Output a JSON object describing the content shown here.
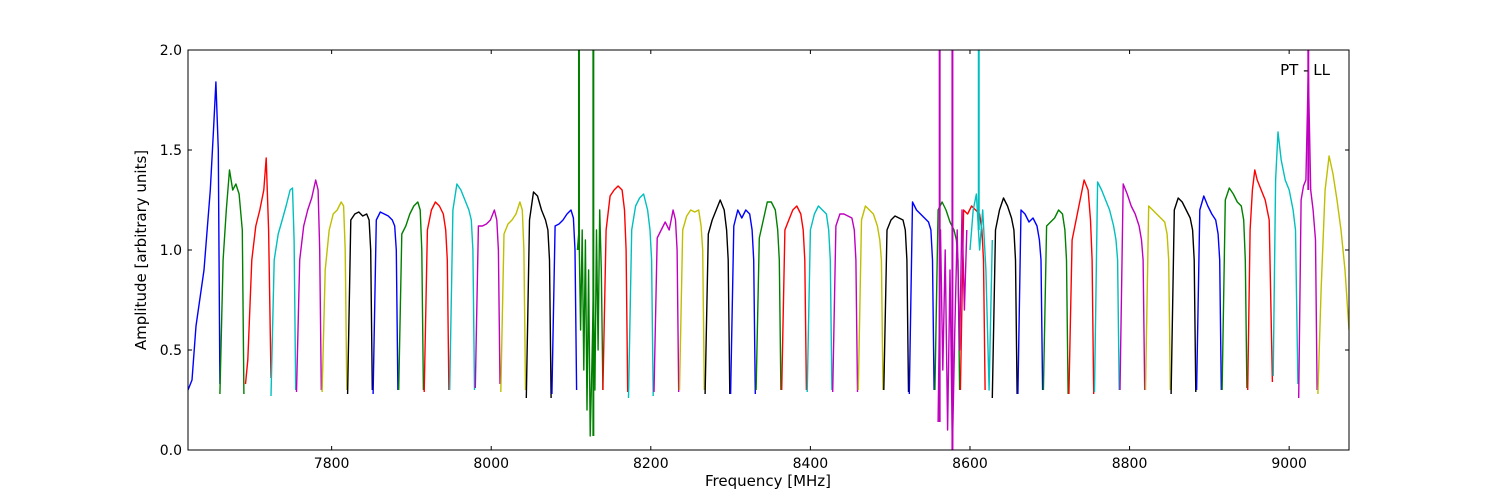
{
  "chart_data": {
    "type": "line",
    "title": "",
    "xlabel": "Frequency [MHz]",
    "ylabel": "Amplitude [arbitrary units]",
    "annotation": "PT - LL",
    "xlim": [
      7620,
      9075
    ],
    "ylim": [
      0.0,
      2.0
    ],
    "xticks": [
      7800,
      8000,
      8200,
      8400,
      8600,
      8800,
      9000
    ],
    "yticks": [
      0.0,
      0.5,
      1.0,
      1.5,
      2.0
    ],
    "xtick_labels": [
      "7800",
      "8000",
      "8200",
      "8400",
      "8600",
      "8800",
      "9000"
    ],
    "ytick_labels": [
      "0.0",
      "0.5",
      "1.0",
      "1.5",
      "2.0"
    ],
    "grid": false,
    "legend": "none",
    "color_cycle": [
      "#0000ff",
      "#008000",
      "#ff0000",
      "#00bfbf",
      "#bf00bf",
      "#bfbf00",
      "#000000"
    ],
    "series": [
      {
        "color": "#0000ff",
        "x": [
          7620,
          7625,
          7630,
          7640,
          7648,
          7652,
          7655,
          7658,
          7660
        ],
        "y": [
          0.3,
          0.35,
          0.62,
          0.9,
          1.3,
          1.6,
          1.84,
          1.5,
          0.33
        ]
      },
      {
        "color": "#008000",
        "x": [
          7660,
          7664,
          7668,
          7672,
          7676,
          7680,
          7684,
          7688,
          7690
        ],
        "y": [
          0.28,
          0.95,
          1.2,
          1.4,
          1.3,
          1.33,
          1.28,
          1.1,
          0.28
        ]
      },
      {
        "color": "#ff0000",
        "x": [
          7692,
          7695,
          7700,
          7705,
          7710,
          7715,
          7718,
          7721,
          7724
        ],
        "y": [
          0.33,
          0.45,
          0.95,
          1.12,
          1.2,
          1.3,
          1.46,
          1.1,
          0.36
        ]
      },
      {
        "color": "#00bfbf",
        "x": [
          7724,
          7728,
          7733,
          7738,
          7743,
          7748,
          7751,
          7753,
          7755
        ],
        "y": [
          0.27,
          0.95,
          1.08,
          1.15,
          1.22,
          1.3,
          1.31,
          1.05,
          0.3
        ]
      },
      {
        "color": "#bf00bf",
        "x": [
          7756,
          7760,
          7765,
          7770,
          7775,
          7780,
          7783,
          7785,
          7787
        ],
        "y": [
          0.29,
          0.95,
          1.12,
          1.2,
          1.26,
          1.35,
          1.3,
          1.0,
          0.3
        ]
      },
      {
        "color": "#bfbf00",
        "x": [
          7788,
          7792,
          7797,
          7802,
          7807,
          7812,
          7815,
          7817,
          7819
        ],
        "y": [
          0.29,
          0.9,
          1.1,
          1.18,
          1.2,
          1.24,
          1.22,
          1.0,
          0.3
        ]
      },
      {
        "color": "#000000",
        "x": [
          7820,
          7824,
          7829,
          7834,
          7839,
          7844,
          7847,
          7849,
          7851
        ],
        "y": [
          0.28,
          1.15,
          1.18,
          1.19,
          1.17,
          1.18,
          1.15,
          1.0,
          0.3
        ]
      },
      {
        "color": "#0000ff",
        "x": [
          7852,
          7856,
          7861,
          7866,
          7871,
          7876,
          7879,
          7881,
          7883
        ],
        "y": [
          0.28,
          1.15,
          1.19,
          1.18,
          1.17,
          1.15,
          1.12,
          1.0,
          0.3
        ]
      },
      {
        "color": "#008000",
        "x": [
          7884,
          7888,
          7893,
          7898,
          7903,
          7908,
          7911,
          7913,
          7915
        ],
        "y": [
          0.3,
          1.08,
          1.12,
          1.18,
          1.22,
          1.24,
          1.2,
          1.0,
          0.3
        ]
      },
      {
        "color": "#ff0000",
        "x": [
          7916,
          7920,
          7925,
          7930,
          7935,
          7940,
          7943,
          7945,
          7947
        ],
        "y": [
          0.29,
          1.1,
          1.2,
          1.24,
          1.22,
          1.18,
          1.1,
          0.95,
          0.3
        ]
      },
      {
        "color": "#00bfbf",
        "x": [
          7948,
          7952,
          7957,
          7962,
          7967,
          7972,
          7975,
          7977,
          7979
        ],
        "y": [
          0.3,
          1.2,
          1.33,
          1.3,
          1.25,
          1.2,
          1.15,
          1.0,
          0.3
        ]
      },
      {
        "color": "#bf00bf",
        "x": [
          7980,
          7984,
          7989,
          7994,
          7999,
          8004,
          8007,
          8009,
          8011
        ],
        "y": [
          0.31,
          1.12,
          1.12,
          1.13,
          1.15,
          1.2,
          1.15,
          1.0,
          0.33
        ]
      },
      {
        "color": "#bfbf00",
        "x": [
          8012,
          8016,
          8021,
          8026,
          8031,
          8036,
          8039,
          8041,
          8043
        ],
        "y": [
          0.29,
          1.08,
          1.13,
          1.15,
          1.18,
          1.24,
          1.2,
          1.0,
          0.3
        ]
      },
      {
        "color": "#000000",
        "x": [
          8044,
          8048,
          8053,
          8058,
          8063,
          8068,
          8071,
          8073,
          8075
        ],
        "y": [
          0.26,
          1.15,
          1.29,
          1.27,
          1.2,
          1.15,
          1.1,
          0.95,
          0.26
        ]
      },
      {
        "color": "#0000ff",
        "x": [
          8076,
          8080,
          8085,
          8090,
          8095,
          8100,
          8103,
          8105,
          8107
        ],
        "y": [
          0.28,
          1.12,
          1.13,
          1.15,
          1.18,
          1.2,
          1.16,
          1.0,
          0.3
        ]
      },
      {
        "color": "#008000",
        "x": [
          8108,
          8110,
          8112,
          8114,
          8116,
          8118,
          8120,
          8122,
          8124,
          8126,
          8128,
          8130,
          8132,
          8134,
          8136,
          8138,
          8140
        ],
        "y": [
          1.0,
          1.1,
          0.6,
          1.1,
          0.4,
          1.05,
          0.2,
          0.9,
          0.07,
          0.4,
          0.8,
          0.3,
          1.1,
          0.5,
          1.2,
          0.9,
          0.3
        ]
      },
      {
        "color": "#ff0000",
        "x": [
          8140,
          8144,
          8149,
          8154,
          8159,
          8164,
          8167,
          8169,
          8171
        ],
        "y": [
          0.3,
          1.1,
          1.27,
          1.3,
          1.32,
          1.3,
          1.2,
          1.0,
          0.29
        ]
      },
      {
        "color": "#00bfbf",
        "x": [
          8172,
          8176,
          8181,
          8186,
          8191,
          8196,
          8199,
          8201,
          8203
        ],
        "y": [
          0.26,
          1.1,
          1.22,
          1.26,
          1.28,
          1.2,
          1.1,
          0.95,
          0.27
        ]
      },
      {
        "color": "#bf00bf",
        "x": [
          8204,
          8208,
          8213,
          8218,
          8223,
          8228,
          8231,
          8233,
          8235
        ],
        "y": [
          0.29,
          1.06,
          1.1,
          1.14,
          1.1,
          1.2,
          1.15,
          1.0,
          0.29
        ]
      },
      {
        "color": "#bfbf00",
        "x": [
          8236,
          8240,
          8245,
          8250,
          8255,
          8260,
          8263,
          8265,
          8267
        ],
        "y": [
          0.3,
          1.1,
          1.17,
          1.2,
          1.19,
          1.2,
          1.12,
          1.0,
          0.3
        ]
      },
      {
        "color": "#000000",
        "x": [
          8268,
          8272,
          8277,
          8282,
          8287,
          8292,
          8295,
          8297,
          8299
        ],
        "y": [
          0.28,
          1.08,
          1.15,
          1.2,
          1.25,
          1.2,
          1.1,
          0.95,
          0.28
        ]
      },
      {
        "color": "#0000ff",
        "x": [
          8300,
          8304,
          8309,
          8314,
          8319,
          8324,
          8327,
          8329,
          8331
        ],
        "y": [
          0.28,
          1.12,
          1.2,
          1.16,
          1.2,
          1.18,
          1.1,
          0.95,
          0.28
        ]
      },
      {
        "color": "#008000",
        "x": [
          8332,
          8336,
          8341,
          8346,
          8351,
          8356,
          8359,
          8361,
          8363
        ],
        "y": [
          0.3,
          1.06,
          1.15,
          1.24,
          1.24,
          1.2,
          1.1,
          0.95,
          0.3
        ]
      },
      {
        "color": "#ff0000",
        "x": [
          8364,
          8368,
          8373,
          8378,
          8383,
          8388,
          8391,
          8393,
          8395
        ],
        "y": [
          0.3,
          1.1,
          1.15,
          1.2,
          1.22,
          1.18,
          1.1,
          0.95,
          0.3
        ]
      },
      {
        "color": "#00bfbf",
        "x": [
          8396,
          8400,
          8405,
          8410,
          8415,
          8420,
          8423,
          8425,
          8427
        ],
        "y": [
          0.29,
          1.1,
          1.18,
          1.22,
          1.2,
          1.18,
          1.1,
          0.95,
          0.3
        ]
      },
      {
        "color": "#bf00bf",
        "x": [
          8428,
          8432,
          8437,
          8442,
          8447,
          8452,
          8455,
          8457,
          8459
        ],
        "y": [
          0.29,
          1.12,
          1.18,
          1.18,
          1.17,
          1.16,
          1.1,
          0.95,
          0.29
        ]
      },
      {
        "color": "#bfbf00",
        "x": [
          8460,
          8464,
          8469,
          8474,
          8479,
          8484,
          8487,
          8489,
          8491
        ],
        "y": [
          0.3,
          1.15,
          1.22,
          1.2,
          1.18,
          1.12,
          1.05,
          0.95,
          0.3
        ]
      },
      {
        "color": "#000000",
        "x": [
          8492,
          8496,
          8501,
          8506,
          8511,
          8516,
          8519,
          8521,
          8523
        ],
        "y": [
          0.3,
          1.1,
          1.15,
          1.17,
          1.16,
          1.15,
          1.1,
          0.95,
          0.29
        ]
      },
      {
        "color": "#0000ff",
        "x": [
          8524,
          8528,
          8533,
          8538,
          8543,
          8548,
          8551,
          8553,
          8555
        ],
        "y": [
          0.28,
          1.24,
          1.2,
          1.18,
          1.16,
          1.14,
          1.1,
          0.95,
          0.3
        ]
      },
      {
        "color": "#008000",
        "x": [
          8556,
          8560,
          8565,
          8570,
          8575,
          8580,
          8583,
          8585,
          8587
        ],
        "y": [
          0.3,
          1.2,
          1.24,
          1.2,
          1.14,
          1.1,
          1.05,
          0.95,
          0.3
        ]
      },
      {
        "color": "#ff0000",
        "x": [
          8588,
          8592,
          8597,
          8602,
          8607,
          8612,
          8615,
          8617,
          8619
        ],
        "y": [
          0.3,
          1.2,
          1.18,
          1.22,
          1.2,
          1.18,
          1.1,
          0.95,
          0.3
        ]
      },
      {
        "color": "#bf00bf",
        "x": [
          8560,
          8563,
          8566,
          8569,
          8572,
          8575,
          8578,
          8581,
          8584,
          8587,
          8590,
          8593,
          8596
        ],
        "y": [
          0.14,
          1.1,
          0.4,
          1.0,
          0.1,
          0.9,
          0.0,
          0.6,
          1.1,
          0.5,
          1.2,
          0.7,
          1.1
        ]
      },
      {
        "color": "#00bfbf",
        "x": [
          8600,
          8604,
          8608,
          8612,
          8616,
          8620,
          8624,
          8628
        ],
        "y": [
          1.0,
          1.2,
          1.28,
          1.0,
          1.2,
          0.9,
          0.3,
          1.05
        ]
      },
      {
        "color": "#000000",
        "x": [
          8628,
          8632,
          8637,
          8642,
          8647,
          8652,
          8655,
          8657,
          8659
        ],
        "y": [
          0.26,
          1.1,
          1.2,
          1.26,
          1.22,
          1.16,
          1.1,
          0.95,
          0.28
        ]
      },
      {
        "color": "#0000ff",
        "x": [
          8660,
          8664,
          8669,
          8674,
          8679,
          8684,
          8687,
          8689,
          8691
        ],
        "y": [
          0.28,
          1.2,
          1.18,
          1.14,
          1.16,
          1.12,
          1.05,
          0.95,
          0.3
        ]
      },
      {
        "color": "#008000",
        "x": [
          8692,
          8696,
          8701,
          8706,
          8711,
          8716,
          8719,
          8721,
          8723
        ],
        "y": [
          0.3,
          1.12,
          1.14,
          1.16,
          1.2,
          1.18,
          1.1,
          0.95,
          0.28
        ]
      },
      {
        "color": "#ff0000",
        "x": [
          8724,
          8728,
          8733,
          8738,
          8743,
          8748,
          8751,
          8753,
          8755
        ],
        "y": [
          0.28,
          1.05,
          1.15,
          1.25,
          1.35,
          1.3,
          1.15,
          0.95,
          0.28
        ]
      },
      {
        "color": "#00bfbf",
        "x": [
          8756,
          8760,
          8765,
          8770,
          8775,
          8780,
          8783,
          8785,
          8787
        ],
        "y": [
          0.29,
          1.34,
          1.3,
          1.25,
          1.2,
          1.12,
          1.05,
          0.95,
          0.3
        ]
      },
      {
        "color": "#bf00bf",
        "x": [
          8788,
          8792,
          8797,
          8802,
          8807,
          8812,
          8815,
          8817,
          8819
        ],
        "y": [
          0.3,
          1.33,
          1.28,
          1.22,
          1.18,
          1.12,
          1.05,
          0.95,
          0.3
        ]
      },
      {
        "color": "#bfbf00",
        "x": [
          8820,
          8824,
          8829,
          8834,
          8839,
          8844,
          8847,
          8849,
          8851
        ],
        "y": [
          0.3,
          1.22,
          1.2,
          1.18,
          1.16,
          1.14,
          1.08,
          0.95,
          0.3
        ]
      },
      {
        "color": "#000000",
        "x": [
          8852,
          8856,
          8861,
          8866,
          8871,
          8876,
          8879,
          8881,
          8883
        ],
        "y": [
          0.28,
          1.2,
          1.26,
          1.24,
          1.2,
          1.16,
          1.1,
          0.95,
          0.29
        ]
      },
      {
        "color": "#0000ff",
        "x": [
          8884,
          8888,
          8893,
          8898,
          8903,
          8908,
          8911,
          8913,
          8915
        ],
        "y": [
          0.3,
          1.2,
          1.27,
          1.22,
          1.18,
          1.15,
          1.08,
          0.95,
          0.3
        ]
      },
      {
        "color": "#008000",
        "x": [
          8916,
          8920,
          8925,
          8930,
          8935,
          8940,
          8943,
          8945,
          8947
        ],
        "y": [
          0.3,
          1.25,
          1.31,
          1.28,
          1.24,
          1.22,
          1.15,
          0.95,
          0.31
        ]
      },
      {
        "color": "#ff0000",
        "x": [
          8948,
          8951,
          8954,
          8957,
          8960,
          8965,
          8970,
          8975,
          8979
        ],
        "y": [
          0.3,
          1.1,
          1.3,
          1.4,
          1.35,
          1.3,
          1.25,
          1.15,
          0.34
        ]
      },
      {
        "color": "#00bfbf",
        "x": [
          8980,
          8983,
          8986,
          8990,
          8995,
          9000,
          9005,
          9008,
          9011
        ],
        "y": [
          0.37,
          1.35,
          1.59,
          1.45,
          1.35,
          1.3,
          1.2,
          1.1,
          0.33
        ]
      },
      {
        "color": "#bf00bf",
        "x": [
          9012,
          9015,
          9018,
          9021,
          9024,
          9027,
          9030,
          9033,
          9035
        ],
        "y": [
          0.26,
          1.25,
          1.32,
          1.35,
          1.9,
          1.3,
          1.2,
          1.05,
          0.3
        ]
      },
      {
        "color": "#bfbf00",
        "x": [
          9036,
          9040,
          9045,
          9050,
          9055,
          9060,
          9065,
          9070,
          9075
        ],
        "y": [
          0.28,
          0.8,
          1.3,
          1.47,
          1.38,
          1.25,
          1.1,
          0.9,
          0.6
        ]
      }
    ],
    "spikes": [
      {
        "color": "#008000",
        "x": 8110,
        "y": [
          1.0,
          2.0
        ]
      },
      {
        "color": "#008000",
        "x": 8128,
        "y": [
          0.07,
          2.0
        ]
      },
      {
        "color": "#bf00bf",
        "x": 8562,
        "y": [
          0.14,
          2.0
        ]
      },
      {
        "color": "#bf00bf",
        "x": 8578,
        "y": [
          0.0,
          2.0
        ]
      },
      {
        "color": "#00bfbf",
        "x": 8611,
        "y": [
          1.1,
          2.0
        ]
      },
      {
        "color": "#bf00bf",
        "x": 9024,
        "y": [
          1.3,
          2.0
        ]
      }
    ]
  }
}
